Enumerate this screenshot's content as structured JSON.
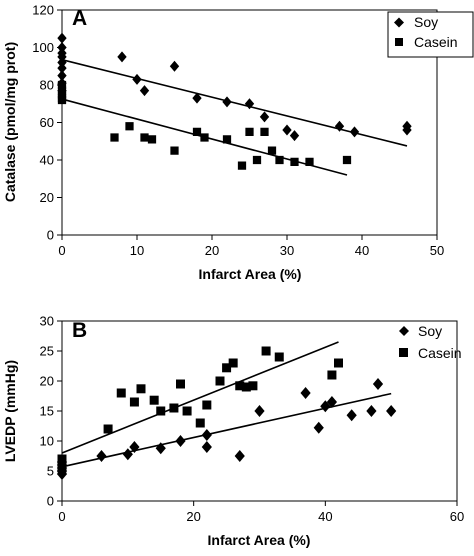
{
  "chart_data": [
    {
      "type": "scatter",
      "panel_label": "A",
      "xlabel": "Infarct Area (%)",
      "ylabel": "Catalase (pmol/mg prot)",
      "xlim": [
        0,
        50
      ],
      "ylim": [
        0,
        120
      ],
      "xticks": [
        0,
        10,
        20,
        30,
        40,
        50
      ],
      "yticks": [
        0,
        20,
        40,
        60,
        80,
        100,
        120
      ],
      "grid": false,
      "legend_position": "top-right",
      "series": [
        {
          "name": "Soy",
          "marker": "diamond",
          "color": "#000000",
          "points": [
            [
              0,
              105
            ],
            [
              0,
              100
            ],
            [
              0,
              97
            ],
            [
              0,
              95
            ],
            [
              0,
              92
            ],
            [
              0,
              89
            ],
            [
              0,
              85
            ],
            [
              0,
              81
            ],
            [
              0,
              77
            ],
            [
              8,
              95
            ],
            [
              10,
              83
            ],
            [
              11,
              77
            ],
            [
              15,
              90
            ],
            [
              18,
              73
            ],
            [
              22,
              71
            ],
            [
              25,
              70
            ],
            [
              27,
              63
            ],
            [
              30,
              56
            ],
            [
              31,
              53
            ],
            [
              37,
              58
            ],
            [
              39,
              55
            ],
            [
              46,
              58
            ],
            [
              46,
              56
            ]
          ],
          "trendline": [
            [
              0,
              93.5
            ],
            [
              46,
              47.5
            ]
          ]
        },
        {
          "name": "Casein",
          "marker": "square",
          "color": "#000000",
          "points": [
            [
              0,
              80
            ],
            [
              0,
              77
            ],
            [
              0,
              75
            ],
            [
              0,
              73
            ],
            [
              0,
              72
            ],
            [
              7,
              52
            ],
            [
              9,
              58
            ],
            [
              11,
              52
            ],
            [
              12,
              51
            ],
            [
              15,
              45
            ],
            [
              18,
              55
            ],
            [
              19,
              52
            ],
            [
              22,
              51
            ],
            [
              24,
              37
            ],
            [
              25,
              55
            ],
            [
              26,
              40
            ],
            [
              27,
              55
            ],
            [
              28,
              45
            ],
            [
              29,
              40
            ],
            [
              31,
              39
            ],
            [
              33,
              39
            ],
            [
              38,
              40
            ]
          ],
          "trendline": [
            [
              0,
              72.5
            ],
            [
              38,
              32
            ]
          ]
        }
      ]
    },
    {
      "type": "scatter",
      "panel_label": "B",
      "xlabel": "Infarct Area (%)",
      "ylabel": "LVEDP (mmHg)",
      "xlim": [
        0,
        60
      ],
      "ylim": [
        0,
        30
      ],
      "xticks": [
        0,
        20,
        40,
        60
      ],
      "yticks": [
        0,
        5,
        10,
        15,
        20,
        25,
        30
      ],
      "grid": false,
      "legend_position": "top-right",
      "series": [
        {
          "name": "Soy",
          "marker": "diamond",
          "color": "#000000",
          "points": [
            [
              0,
              6.5
            ],
            [
              0,
              6
            ],
            [
              0,
              5.5
            ],
            [
              0,
              5
            ],
            [
              0,
              4.5
            ],
            [
              6,
              7.5
            ],
            [
              10,
              7.8
            ],
            [
              11,
              9
            ],
            [
              15,
              8.8
            ],
            [
              18,
              10
            ],
            [
              22,
              9
            ],
            [
              22,
              11
            ],
            [
              27,
              7.5
            ],
            [
              30,
              15
            ],
            [
              37,
              18
            ],
            [
              39,
              12.2
            ],
            [
              40,
              15.8
            ],
            [
              41,
              16.5
            ],
            [
              44,
              14.3
            ],
            [
              47,
              15
            ],
            [
              48,
              19.5
            ],
            [
              50,
              15
            ]
          ],
          "trendline": [
            [
              0,
              5.7
            ],
            [
              50,
              17.9
            ]
          ]
        },
        {
          "name": "Casein",
          "marker": "square",
          "color": "#000000",
          "points": [
            [
              0,
              7
            ],
            [
              0,
              6.2
            ],
            [
              0,
              5.5
            ],
            [
              7,
              12
            ],
            [
              9,
              18
            ],
            [
              11,
              16.5
            ],
            [
              12,
              18.7
            ],
            [
              14,
              16.8
            ],
            [
              15,
              15
            ],
            [
              17,
              15.5
            ],
            [
              18,
              19.5
            ],
            [
              19,
              15
            ],
            [
              21,
              13
            ],
            [
              22,
              16
            ],
            [
              24,
              20
            ],
            [
              25,
              22.2
            ],
            [
              26,
              23
            ],
            [
              27,
              19.2
            ],
            [
              28,
              19
            ],
            [
              29,
              19.2
            ],
            [
              31,
              25
            ],
            [
              33,
              24
            ],
            [
              41,
              21
            ],
            [
              42,
              23
            ]
          ],
          "trendline": [
            [
              0,
              8
            ],
            [
              42,
              26.5
            ]
          ]
        }
      ]
    }
  ]
}
